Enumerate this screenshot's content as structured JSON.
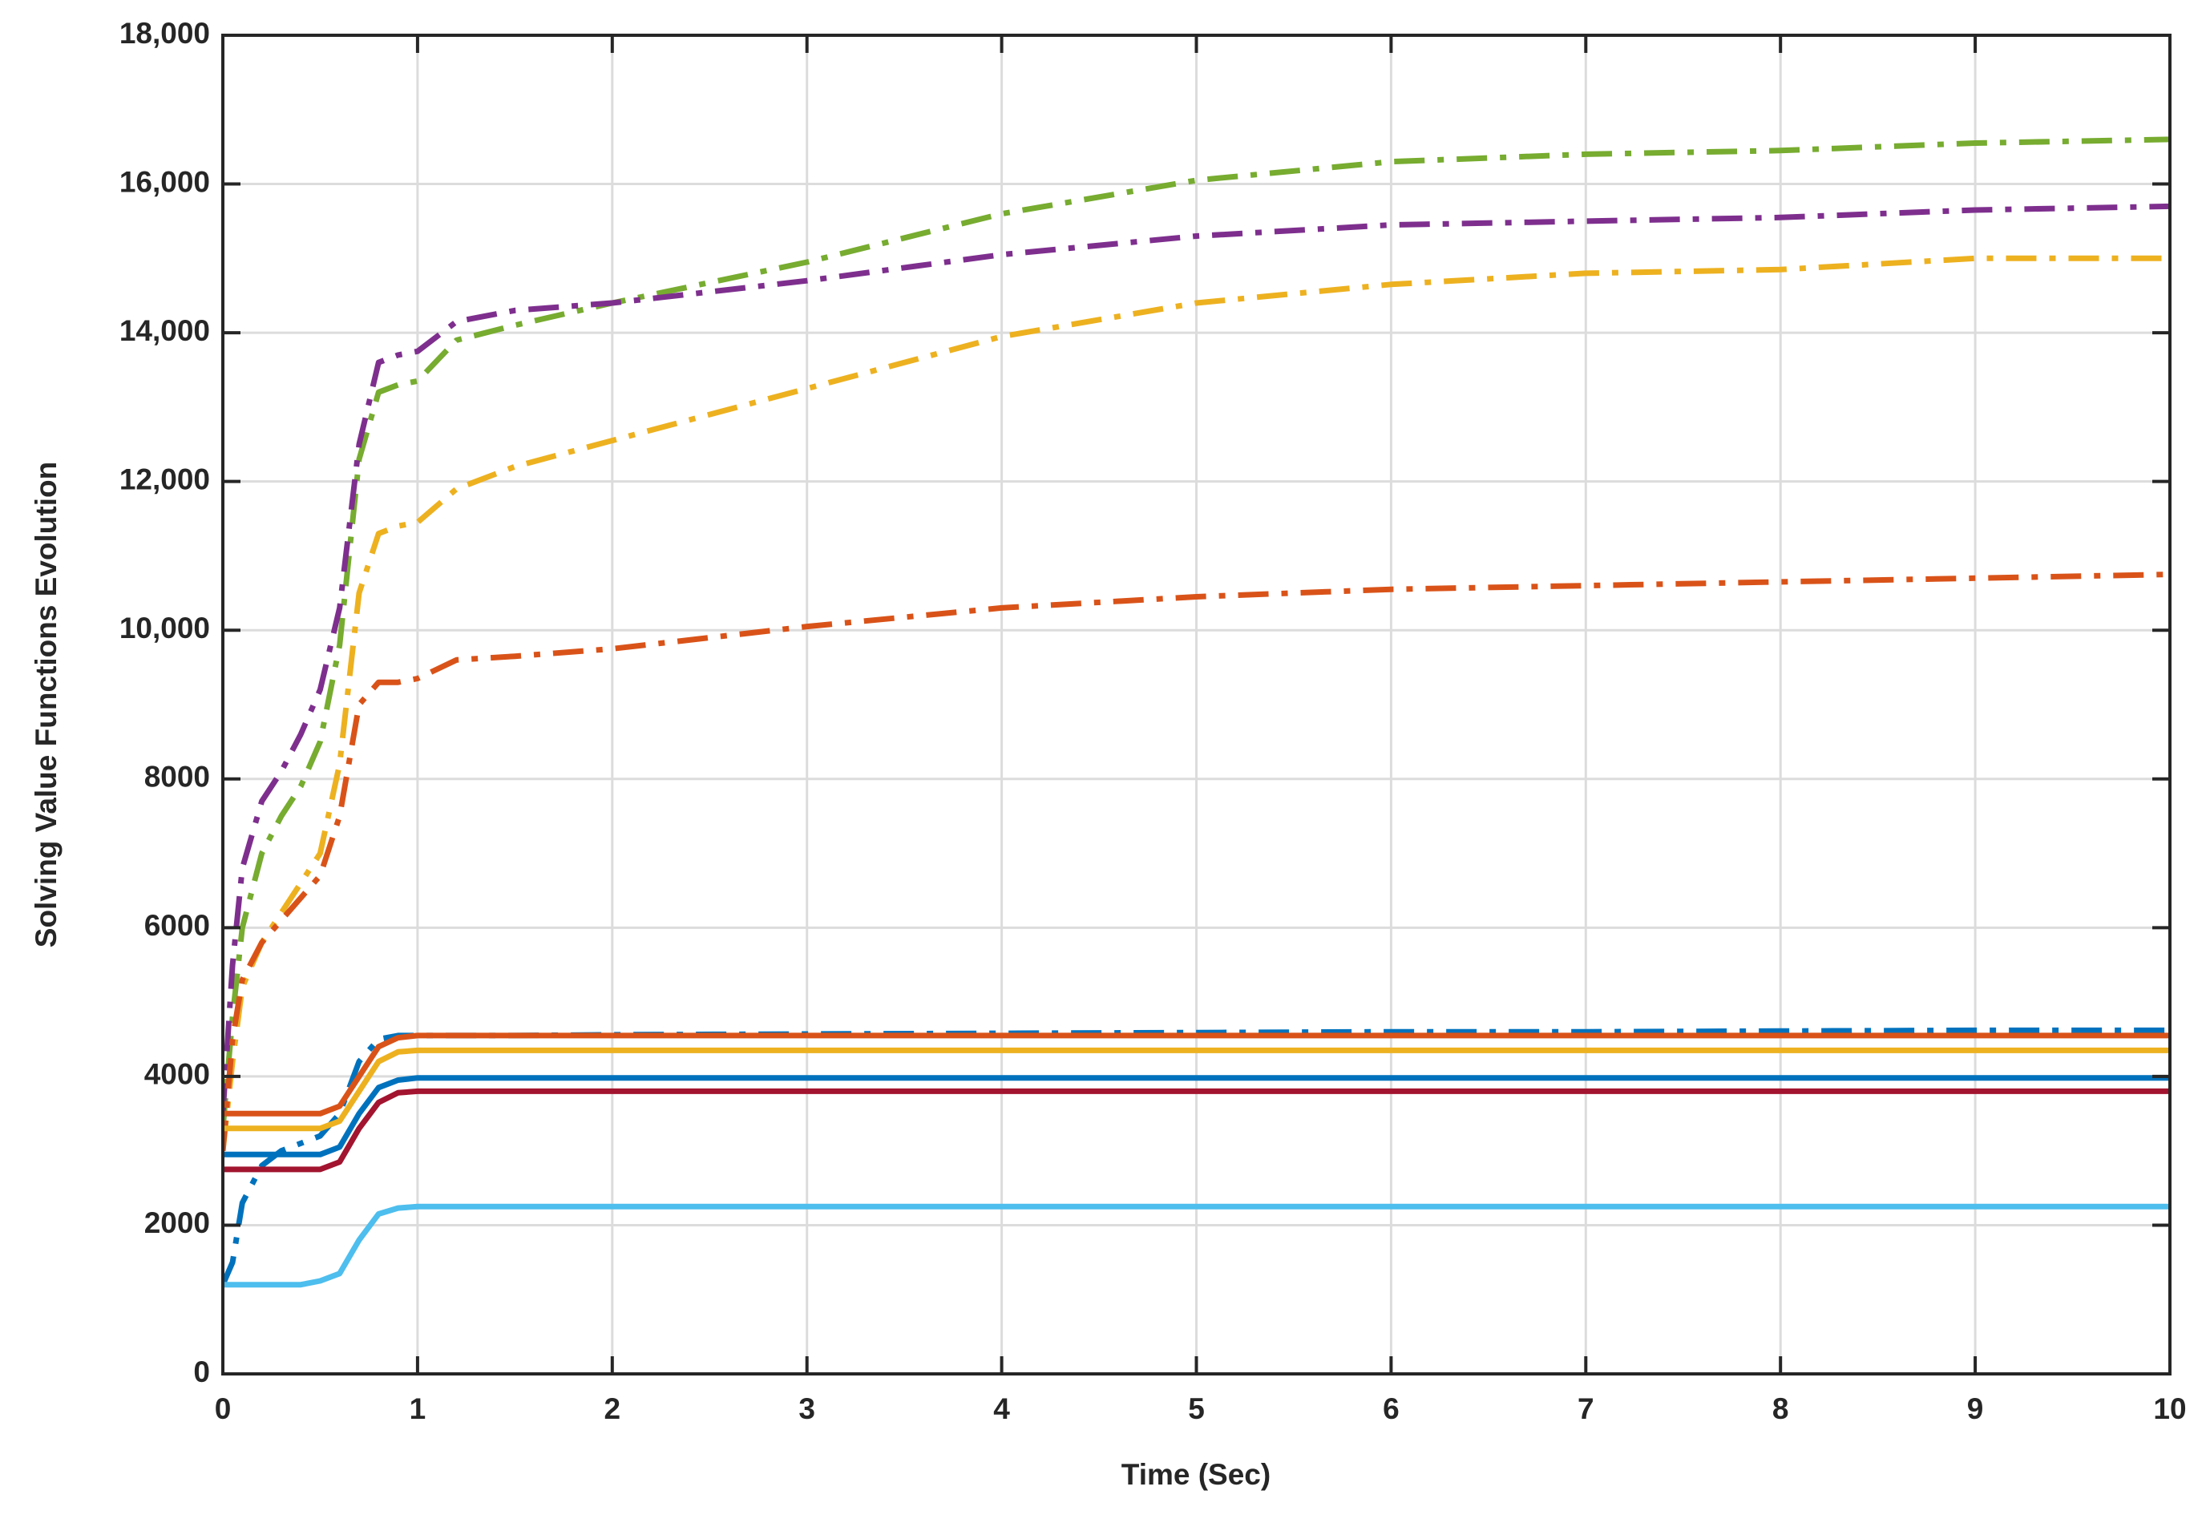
{
  "chart_data": {
    "type": "line",
    "xlabel": "Time (Sec)",
    "ylabel": "Solving Value Functions Evolution",
    "x": [
      0,
      0.05,
      0.1,
      0.2,
      0.3,
      0.4,
      0.5,
      0.6,
      0.7,
      0.8,
      0.9,
      1.0,
      1.2,
      1.5,
      2,
      3,
      4,
      5,
      6,
      7,
      8,
      9,
      10
    ],
    "series": [
      {
        "color": "#77AC30",
        "style": "dashdot",
        "values": [
          3300,
          4800,
          6000,
          7000,
          7500,
          7900,
          8500,
          9800,
          12300,
          13200,
          13300,
          13350,
          13900,
          14100,
          14400,
          14950,
          15600,
          16050,
          16300,
          16400,
          16450,
          16550,
          16600
        ]
      },
      {
        "color": "#7E2F8E",
        "style": "dashdot",
        "values": [
          3500,
          5500,
          6800,
          7700,
          8100,
          8600,
          9200,
          10300,
          12500,
          13600,
          13700,
          13750,
          14150,
          14300,
          14400,
          14700,
          15050,
          15300,
          15450,
          15500,
          15550,
          15650,
          15700
        ]
      },
      {
        "color": "#EDB120",
        "style": "dashdot",
        "values": [
          3000,
          4200,
          5200,
          5800,
          6200,
          6600,
          7000,
          8200,
          10500,
          11300,
          11400,
          11450,
          11900,
          12200,
          12550,
          13250,
          13950,
          14400,
          14650,
          14800,
          14850,
          15000,
          15000
        ]
      },
      {
        "color": "#D95319",
        "style": "dashdot",
        "values": [
          3000,
          4500,
          5300,
          5800,
          6100,
          6400,
          6700,
          7500,
          9000,
          9300,
          9300,
          9350,
          9600,
          9650,
          9750,
          10050,
          10300,
          10450,
          10550,
          10600,
          10650,
          10700,
          10750
        ]
      },
      {
        "color": "#0072BD",
        "style": "dashdot",
        "values": [
          1200,
          1500,
          2300,
          2800,
          3000,
          3100,
          3200,
          3500,
          4200,
          4500,
          4550,
          4550,
          4550,
          4550,
          4560,
          4570,
          4580,
          4590,
          4600,
          4600,
          4610,
          4620,
          4620
        ]
      },
      {
        "color": "#D95319",
        "style": "solid",
        "values": [
          3500,
          3500,
          3500,
          3500,
          3500,
          3500,
          3500,
          3600,
          4000,
          4400,
          4520,
          4550,
          4550,
          4550,
          4550,
          4550,
          4550,
          4550,
          4550,
          4550,
          4550,
          4550,
          4550
        ]
      },
      {
        "color": "#EDB120",
        "style": "solid",
        "values": [
          3300,
          3300,
          3300,
          3300,
          3300,
          3300,
          3300,
          3400,
          3800,
          4200,
          4330,
          4350,
          4350,
          4350,
          4350,
          4350,
          4350,
          4350,
          4350,
          4350,
          4350,
          4350,
          4350
        ]
      },
      {
        "color": "#0072BD",
        "style": "solid",
        "values": [
          2950,
          2950,
          2950,
          2950,
          2950,
          2950,
          2950,
          3050,
          3500,
          3850,
          3950,
          3980,
          3980,
          3980,
          3980,
          3980,
          3980,
          3980,
          3980,
          3980,
          3980,
          3980,
          3980
        ]
      },
      {
        "color": "#A2142F",
        "style": "solid",
        "values": [
          2750,
          2750,
          2750,
          2750,
          2750,
          2750,
          2750,
          2850,
          3300,
          3650,
          3780,
          3800,
          3800,
          3800,
          3800,
          3800,
          3800,
          3800,
          3800,
          3800,
          3800,
          3800,
          3800
        ]
      },
      {
        "color": "#4DBEEE",
        "style": "solid",
        "values": [
          1200,
          1200,
          1200,
          1200,
          1200,
          1200,
          1250,
          1350,
          1800,
          2150,
          2230,
          2250,
          2250,
          2250,
          2250,
          2250,
          2250,
          2250,
          2250,
          2250,
          2250,
          2250,
          2250
        ]
      }
    ],
    "xlim": [
      0,
      10
    ],
    "xticks": [
      0,
      1,
      2,
      3,
      4,
      5,
      6,
      7,
      8,
      9,
      10
    ],
    "ylim": [
      0,
      18000
    ],
    "yticks": [
      0,
      2000,
      4000,
      6000,
      8000,
      {
        "value": 10000,
        "label": "10,000"
      },
      {
        "value": 12000,
        "label": "12,000"
      },
      {
        "value": 14000,
        "label": "14,000"
      },
      {
        "value": 16000,
        "label": "16,000"
      },
      {
        "value": 18000,
        "label": "18,000"
      }
    ],
    "grid": true
  }
}
